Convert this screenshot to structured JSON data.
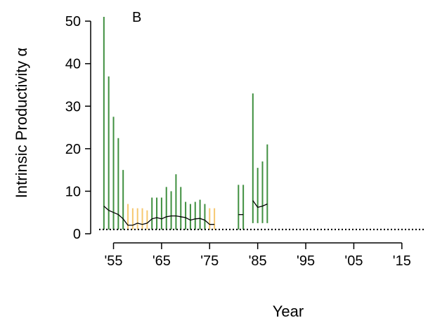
{
  "chart_data": {
    "type": "line",
    "panel_label": "B",
    "xlabel": "Year",
    "ylabel": "Intrinsic Productivity α",
    "xlim": [
      1952,
      2020
    ],
    "ylim": [
      0,
      52
    ],
    "x_ticks": [
      1955,
      1965,
      1975,
      1985,
      1995,
      2005,
      2015
    ],
    "x_tick_labels": [
      "'55",
      "'65",
      "'75",
      "'85",
      "'95",
      "'05",
      "'15"
    ],
    "y_ticks": [
      0,
      10,
      20,
      30,
      40,
      50
    ],
    "y_tick_labels": [
      "0",
      "10",
      "20",
      "30",
      "40",
      "50"
    ],
    "reference_line": {
      "y": 1,
      "style": "dotted"
    },
    "colors": {
      "interval_green": "#3f8f3f",
      "interval_orange": "#f6c86f",
      "median_line": "#000000"
    },
    "intervals": [
      {
        "year": 1953,
        "low": 1.0,
        "high": 51.0,
        "color": "green"
      },
      {
        "year": 1954,
        "low": 1.0,
        "high": 37.0,
        "color": "green"
      },
      {
        "year": 1955,
        "low": 1.0,
        "high": 27.5,
        "color": "green"
      },
      {
        "year": 1956,
        "low": 1.0,
        "high": 22.5,
        "color": "green"
      },
      {
        "year": 1957,
        "low": 1.0,
        "high": 15.0,
        "color": "green"
      },
      {
        "year": 1958,
        "low": 1.0,
        "high": 7.0,
        "color": "orange"
      },
      {
        "year": 1959,
        "low": 1.0,
        "high": 6.0,
        "color": "orange"
      },
      {
        "year": 1960,
        "low": 1.0,
        "high": 6.0,
        "color": "orange"
      },
      {
        "year": 1961,
        "low": 1.0,
        "high": 6.0,
        "color": "orange"
      },
      {
        "year": 1962,
        "low": 1.0,
        "high": 5.5,
        "color": "orange"
      },
      {
        "year": 1963,
        "low": 1.0,
        "high": 8.5,
        "color": "green"
      },
      {
        "year": 1964,
        "low": 1.0,
        "high": 8.5,
        "color": "green"
      },
      {
        "year": 1965,
        "low": 1.0,
        "high": 8.5,
        "color": "green"
      },
      {
        "year": 1966,
        "low": 1.0,
        "high": 11.0,
        "color": "green"
      },
      {
        "year": 1967,
        "low": 1.0,
        "high": 10.0,
        "color": "green"
      },
      {
        "year": 1968,
        "low": 1.0,
        "high": 14.0,
        "color": "green"
      },
      {
        "year": 1969,
        "low": 1.0,
        "high": 11.0,
        "color": "green"
      },
      {
        "year": 1970,
        "low": 1.0,
        "high": 7.5,
        "color": "green"
      },
      {
        "year": 1971,
        "low": 1.0,
        "high": 7.0,
        "color": "green"
      },
      {
        "year": 1972,
        "low": 1.0,
        "high": 7.5,
        "color": "green"
      },
      {
        "year": 1973,
        "low": 1.0,
        "high": 8.0,
        "color": "green"
      },
      {
        "year": 1974,
        "low": 1.0,
        "high": 7.0,
        "color": "green"
      },
      {
        "year": 1975,
        "low": 1.0,
        "high": 6.0,
        "color": "orange"
      },
      {
        "year": 1976,
        "low": 1.0,
        "high": 6.0,
        "color": "orange"
      },
      {
        "year": 1981,
        "low": 1.0,
        "high": 11.5,
        "color": "green"
      },
      {
        "year": 1982,
        "low": 1.0,
        "high": 11.5,
        "color": "green"
      },
      {
        "year": 1984,
        "low": 2.5,
        "high": 33.0,
        "color": "green"
      },
      {
        "year": 1985,
        "low": 2.5,
        "high": 15.5,
        "color": "green"
      },
      {
        "year": 1986,
        "low": 2.5,
        "high": 17.0,
        "color": "green"
      },
      {
        "year": 1987,
        "low": 2.5,
        "high": 21.0,
        "color": "green"
      }
    ],
    "median_segments": [
      {
        "x": [
          1953,
          1954,
          1955,
          1956,
          1957,
          1958,
          1959,
          1960,
          1961,
          1962,
          1963,
          1964,
          1965,
          1966,
          1967,
          1968,
          1969,
          1970,
          1971,
          1972,
          1973,
          1974,
          1975,
          1976
        ],
        "y": [
          6.5,
          5.5,
          5.0,
          4.5,
          3.5,
          2.0,
          2.0,
          2.5,
          2.2,
          2.5,
          3.5,
          3.8,
          3.5,
          4.0,
          4.2,
          4.2,
          4.0,
          3.8,
          3.2,
          3.5,
          3.6,
          3.2,
          2.2,
          2.2
        ]
      },
      {
        "x": [
          1981,
          1982
        ],
        "y": [
          4.5,
          4.5
        ]
      },
      {
        "x": [
          1984,
          1985,
          1986,
          1987
        ],
        "y": [
          7.8,
          6.2,
          6.5,
          7.0
        ]
      }
    ]
  }
}
